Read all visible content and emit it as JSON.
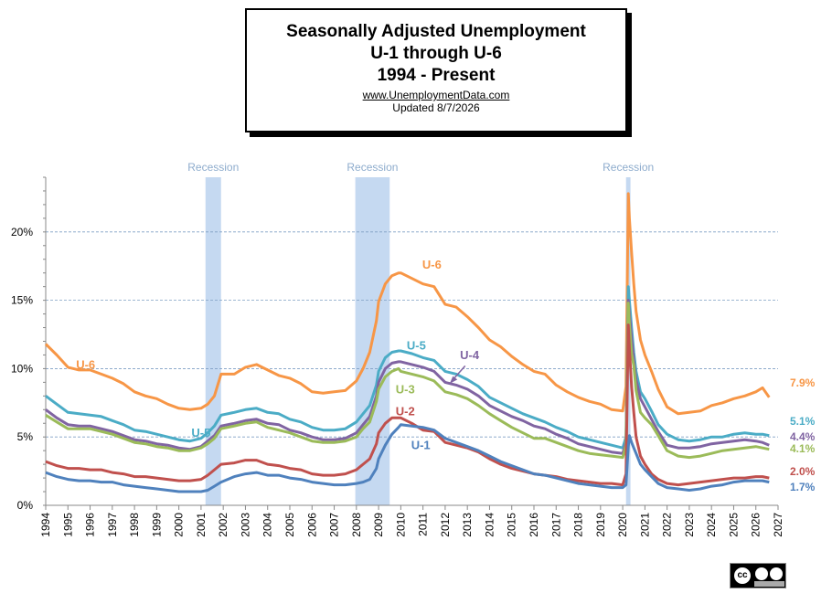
{
  "header": {
    "line1": "Seasonally Adjusted Unemployment",
    "line2": "U-1 through U-6",
    "line3": "1994 - Present",
    "url": "www.UnemploymentData.com",
    "updated": "Updated 8/7/2026"
  },
  "license_icon": "creative-commons-by-sa-icon",
  "chart_data": {
    "type": "line",
    "title": "",
    "xlabel": "",
    "ylabel": "",
    "xlim": [
      1994,
      2027
    ],
    "ylim": [
      0,
      24
    ],
    "x_ticks": [
      "1994",
      "1995",
      "1996",
      "1997",
      "1998",
      "1999",
      "2000",
      "2001",
      "2002",
      "2003",
      "2004",
      "2005",
      "2006",
      "2007",
      "2008",
      "2009",
      "2010",
      "2011",
      "2012",
      "2013",
      "2014",
      "2015",
      "2016",
      "2017",
      "2018",
      "2019",
      "2020",
      "2021",
      "2022",
      "2023",
      "2024",
      "2025",
      "2026",
      "2027"
    ],
    "y_ticks": [
      {
        "value": 0,
        "label": "0%"
      },
      {
        "value": 5,
        "label": "5%"
      },
      {
        "value": 10,
        "label": "10%"
      },
      {
        "value": 15,
        "label": "15%"
      },
      {
        "value": 20,
        "label": "20%"
      }
    ],
    "gridlines": "horizontal dashed",
    "recessions": [
      {
        "start": 2001.2,
        "end": 2001.9,
        "label": "Recession"
      },
      {
        "start": 2007.95,
        "end": 2009.5,
        "label": "Recession"
      },
      {
        "start": 2020.15,
        "end": 2020.35,
        "label": "Recession"
      }
    ],
    "series": [
      {
        "name": "U-6",
        "color": "#f79646",
        "latest_label": "7.9%",
        "x": [
          1994,
          1994.5,
          1995,
          1995.5,
          1996,
          1996.5,
          1997,
          1997.5,
          1998,
          1998.5,
          1999,
          1999.5,
          2000,
          2000.5,
          2001,
          2001.3,
          2001.6,
          2001.9,
          2002.5,
          2003,
          2003.5,
          2004,
          2004.5,
          2005,
          2005.5,
          2006,
          2006.5,
          2007,
          2007.5,
          2008,
          2008.3,
          2008.6,
          2008.9,
          2009,
          2009.3,
          2009.6,
          2009.9,
          2010,
          2010.5,
          2011,
          2011.5,
          2012,
          2012.5,
          2013,
          2013.5,
          2014,
          2014.5,
          2015,
          2015.5,
          2016,
          2016.5,
          2017,
          2017.5,
          2018,
          2018.5,
          2019,
          2019.5,
          2020,
          2020.15,
          2020.25,
          2020.3,
          2020.4,
          2020.5,
          2020.6,
          2020.8,
          2021,
          2021.3,
          2021.6,
          2022,
          2022.5,
          2023,
          2023.5,
          2024,
          2024.5,
          2025,
          2025.5,
          2026,
          2026.3,
          2026.6
        ],
        "y": [
          11.8,
          11,
          10.1,
          9.9,
          9.9,
          9.6,
          9.3,
          8.9,
          8.3,
          8.0,
          7.8,
          7.4,
          7.1,
          7.0,
          7.1,
          7.4,
          8.0,
          9.6,
          9.6,
          10.1,
          10.3,
          9.9,
          9.5,
          9.3,
          8.9,
          8.3,
          8.2,
          8.3,
          8.4,
          9.1,
          10.0,
          11.2,
          13.5,
          14.9,
          16.2,
          16.8,
          17.0,
          17.0,
          16.6,
          16.2,
          16.0,
          14.7,
          14.5,
          13.8,
          13.0,
          12.1,
          11.6,
          10.9,
          10.3,
          9.8,
          9.6,
          8.8,
          8.3,
          7.9,
          7.6,
          7.4,
          7.0,
          6.9,
          8.7,
          22.8,
          21.0,
          18.5,
          16.2,
          14.2,
          12.1,
          11.0,
          9.8,
          8.5,
          7.2,
          6.7,
          6.8,
          6.9,
          7.3,
          7.5,
          7.8,
          8.0,
          8.3,
          8.6,
          7.9
        ]
      },
      {
        "name": "U-5",
        "color": "#4bacc6",
        "latest_label": "5.1%",
        "x": [
          1994,
          1994.5,
          1995,
          1995.5,
          1996,
          1996.5,
          1997,
          1997.5,
          1998,
          1998.5,
          1999,
          1999.5,
          2000,
          2000.5,
          2001,
          2001.3,
          2001.6,
          2001.9,
          2002.5,
          2003,
          2003.5,
          2004,
          2004.5,
          2005,
          2005.5,
          2006,
          2006.5,
          2007,
          2007.5,
          2008,
          2008.3,
          2008.6,
          2008.9,
          2009,
          2009.3,
          2009.6,
          2009.9,
          2010,
          2010.5,
          2011,
          2011.5,
          2012,
          2012.5,
          2013,
          2013.5,
          2014,
          2014.5,
          2015,
          2015.5,
          2016,
          2016.5,
          2017,
          2017.5,
          2018,
          2018.5,
          2019,
          2019.5,
          2020,
          2020.15,
          2020.25,
          2020.3,
          2020.4,
          2020.5,
          2020.6,
          2020.8,
          2021,
          2021.3,
          2021.6,
          2022,
          2022.5,
          2023,
          2023.5,
          2024,
          2024.5,
          2025,
          2025.5,
          2026,
          2026.3,
          2026.6
        ],
        "y": [
          8.0,
          7.4,
          6.8,
          6.7,
          6.6,
          6.5,
          6.2,
          5.9,
          5.5,
          5.4,
          5.2,
          5.0,
          4.8,
          4.7,
          4.9,
          5.3,
          5.8,
          6.6,
          6.8,
          7.0,
          7.1,
          6.8,
          6.7,
          6.3,
          6.1,
          5.7,
          5.5,
          5.5,
          5.6,
          6.1,
          6.7,
          7.3,
          8.8,
          9.8,
          10.8,
          11.2,
          11.3,
          11.3,
          11.1,
          10.8,
          10.6,
          9.8,
          9.6,
          9.2,
          8.7,
          7.9,
          7.5,
          7.1,
          6.7,
          6.4,
          6.1,
          5.7,
          5.4,
          5.0,
          4.8,
          4.6,
          4.4,
          4.2,
          5.0,
          16.0,
          15.0,
          13.0,
          11.2,
          9.8,
          8.3,
          7.8,
          6.9,
          5.9,
          5.2,
          4.8,
          4.7,
          4.8,
          5.0,
          5.0,
          5.2,
          5.3,
          5.2,
          5.2,
          5.1
        ]
      },
      {
        "name": "U-4",
        "color": "#8064a2",
        "latest_label": "4.4%",
        "x": [
          1994,
          1994.5,
          1995,
          1995.5,
          1996,
          1996.5,
          1997,
          1997.5,
          1998,
          1998.5,
          1999,
          1999.5,
          2000,
          2000.5,
          2001,
          2001.3,
          2001.6,
          2001.9,
          2002.5,
          2003,
          2003.5,
          2004,
          2004.5,
          2005,
          2005.5,
          2006,
          2006.5,
          2007,
          2007.5,
          2008,
          2008.3,
          2008.6,
          2008.9,
          2009,
          2009.3,
          2009.6,
          2009.9,
          2010,
          2010.5,
          2011,
          2011.5,
          2012,
          2012.5,
          2013,
          2013.5,
          2014,
          2014.5,
          2015,
          2015.5,
          2016,
          2016.5,
          2017,
          2017.5,
          2018,
          2018.5,
          2019,
          2019.5,
          2020,
          2020.15,
          2020.25,
          2020.3,
          2020.4,
          2020.5,
          2020.6,
          2020.8,
          2021,
          2021.3,
          2021.6,
          2022,
          2022.5,
          2023,
          2023.5,
          2024,
          2024.5,
          2025,
          2025.5,
          2026,
          2026.3,
          2026.6
        ],
        "y": [
          7.0,
          6.4,
          5.9,
          5.8,
          5.8,
          5.6,
          5.4,
          5.1,
          4.8,
          4.7,
          4.5,
          4.4,
          4.2,
          4.1,
          4.3,
          4.7,
          5.1,
          5.8,
          6.0,
          6.2,
          6.3,
          6.0,
          5.9,
          5.5,
          5.3,
          5.0,
          4.8,
          4.8,
          4.9,
          5.3,
          5.9,
          6.5,
          8.0,
          9.0,
          10.0,
          10.4,
          10.5,
          10.5,
          10.3,
          10.1,
          9.8,
          9.0,
          8.8,
          8.5,
          8.0,
          7.3,
          6.9,
          6.5,
          6.2,
          5.8,
          5.6,
          5.2,
          4.9,
          4.5,
          4.3,
          4.1,
          3.9,
          3.8,
          4.6,
          15.0,
          14.0,
          12.2,
          10.6,
          9.2,
          7.8,
          7.2,
          6.3,
          5.4,
          4.4,
          4.2,
          4.2,
          4.3,
          4.5,
          4.6,
          4.7,
          4.8,
          4.7,
          4.6,
          4.4
        ]
      },
      {
        "name": "U-3",
        "color": "#9bbb59",
        "latest_label": "4.1%",
        "x": [
          1994,
          1994.5,
          1995,
          1995.5,
          1996,
          1996.5,
          1997,
          1997.5,
          1998,
          1998.5,
          1999,
          1999.5,
          2000,
          2000.5,
          2001,
          2001.3,
          2001.6,
          2001.9,
          2002.5,
          2003,
          2003.5,
          2004,
          2004.5,
          2005,
          2005.5,
          2006,
          2006.5,
          2007,
          2007.5,
          2008,
          2008.3,
          2008.6,
          2008.9,
          2009,
          2009.3,
          2009.6,
          2009.9,
          2010,
          2010.5,
          2011,
          2011.5,
          2012,
          2012.5,
          2013,
          2013.5,
          2014,
          2014.5,
          2015,
          2015.5,
          2016,
          2016.5,
          2017,
          2017.5,
          2018,
          2018.5,
          2019,
          2019.5,
          2020,
          2020.15,
          2020.25,
          2020.3,
          2020.4,
          2020.5,
          2020.6,
          2020.8,
          2021,
          2021.3,
          2021.6,
          2022,
          2022.5,
          2023,
          2023.5,
          2024,
          2024.5,
          2025,
          2025.5,
          2026,
          2026.3,
          2026.6
        ],
        "y": [
          6.6,
          6.1,
          5.6,
          5.6,
          5.6,
          5.4,
          5.2,
          4.9,
          4.6,
          4.5,
          4.3,
          4.2,
          4.0,
          4.0,
          4.2,
          4.5,
          4.9,
          5.6,
          5.8,
          6.0,
          6.1,
          5.7,
          5.5,
          5.3,
          5.0,
          4.7,
          4.6,
          4.6,
          4.7,
          5.0,
          5.6,
          6.1,
          7.6,
          8.5,
          9.4,
          9.8,
          10.0,
          9.8,
          9.6,
          9.4,
          9.1,
          8.3,
          8.1,
          7.8,
          7.3,
          6.7,
          6.2,
          5.7,
          5.3,
          4.9,
          4.9,
          4.6,
          4.3,
          4.0,
          3.8,
          3.7,
          3.6,
          3.5,
          4.4,
          14.8,
          13.3,
          11.1,
          10.2,
          8.4,
          6.8,
          6.4,
          5.9,
          5.1,
          4.0,
          3.6,
          3.5,
          3.6,
          3.8,
          4.0,
          4.1,
          4.2,
          4.3,
          4.2,
          4.1
        ]
      },
      {
        "name": "U-2",
        "color": "#c0504d",
        "latest_label": "2.0%",
        "x": [
          1994,
          1994.5,
          1995,
          1995.5,
          1996,
          1996.5,
          1997,
          1997.5,
          1998,
          1998.5,
          1999,
          1999.5,
          2000,
          2000.5,
          2001,
          2001.3,
          2001.6,
          2001.9,
          2002.5,
          2003,
          2003.5,
          2004,
          2004.5,
          2005,
          2005.5,
          2006,
          2006.5,
          2007,
          2007.5,
          2008,
          2008.3,
          2008.6,
          2008.9,
          2009,
          2009.3,
          2009.6,
          2009.9,
          2010,
          2010.5,
          2011,
          2011.5,
          2012,
          2012.5,
          2013,
          2013.5,
          2014,
          2014.5,
          2015,
          2015.5,
          2016,
          2016.5,
          2017,
          2017.5,
          2018,
          2018.5,
          2019,
          2019.5,
          2020,
          2020.15,
          2020.25,
          2020.3,
          2020.4,
          2020.5,
          2020.6,
          2020.8,
          2021,
          2021.3,
          2021.6,
          2022,
          2022.5,
          2023,
          2023.5,
          2024,
          2024.5,
          2025,
          2025.5,
          2026,
          2026.3,
          2026.6
        ],
        "y": [
          3.2,
          2.9,
          2.7,
          2.7,
          2.6,
          2.6,
          2.4,
          2.3,
          2.1,
          2.1,
          2.0,
          1.9,
          1.8,
          1.8,
          1.9,
          2.2,
          2.6,
          3.0,
          3.1,
          3.3,
          3.3,
          3.0,
          2.9,
          2.7,
          2.6,
          2.3,
          2.2,
          2.2,
          2.3,
          2.6,
          3.0,
          3.4,
          4.5,
          5.3,
          6.0,
          6.4,
          6.4,
          6.4,
          6.0,
          5.5,
          5.4,
          4.6,
          4.4,
          4.2,
          3.9,
          3.4,
          3.0,
          2.7,
          2.5,
          2.3,
          2.2,
          2.1,
          1.9,
          1.8,
          1.7,
          1.6,
          1.6,
          1.5,
          2.3,
          13.2,
          11.5,
          8.7,
          6.8,
          5.0,
          3.6,
          3.0,
          2.3,
          1.9,
          1.6,
          1.5,
          1.6,
          1.7,
          1.8,
          1.9,
          2.0,
          2.0,
          2.1,
          2.1,
          2.0
        ]
      },
      {
        "name": "U-1",
        "color": "#4f81bd",
        "latest_label": "1.7%",
        "x": [
          1994,
          1994.5,
          1995,
          1995.5,
          1996,
          1996.5,
          1997,
          1997.5,
          1998,
          1998.5,
          1999,
          1999.5,
          2000,
          2000.5,
          2001,
          2001.3,
          2001.6,
          2001.9,
          2002.5,
          2003,
          2003.5,
          2004,
          2004.5,
          2005,
          2005.5,
          2006,
          2006.5,
          2007,
          2007.5,
          2008,
          2008.3,
          2008.6,
          2008.9,
          2009,
          2009.3,
          2009.6,
          2009.9,
          2010,
          2010.5,
          2011,
          2011.5,
          2012,
          2012.5,
          2013,
          2013.5,
          2014,
          2014.5,
          2015,
          2015.5,
          2016,
          2016.5,
          2017,
          2017.5,
          2018,
          2018.5,
          2019,
          2019.5,
          2020,
          2020.15,
          2020.25,
          2020.3,
          2020.4,
          2020.5,
          2020.6,
          2020.8,
          2021,
          2021.3,
          2021.6,
          2022,
          2022.5,
          2023,
          2023.5,
          2024,
          2024.5,
          2025,
          2025.5,
          2026,
          2026.3,
          2026.6
        ],
        "y": [
          2.4,
          2.1,
          1.9,
          1.8,
          1.8,
          1.7,
          1.7,
          1.5,
          1.4,
          1.3,
          1.2,
          1.1,
          1.0,
          1.0,
          1.0,
          1.1,
          1.4,
          1.7,
          2.1,
          2.3,
          2.4,
          2.2,
          2.2,
          2.0,
          1.9,
          1.7,
          1.6,
          1.5,
          1.5,
          1.6,
          1.7,
          1.9,
          2.7,
          3.4,
          4.4,
          5.2,
          5.7,
          5.9,
          5.8,
          5.7,
          5.5,
          4.9,
          4.6,
          4.3,
          4.0,
          3.6,
          3.2,
          2.9,
          2.6,
          2.3,
          2.2,
          2.0,
          1.8,
          1.6,
          1.5,
          1.4,
          1.3,
          1.3,
          1.5,
          4.3,
          5.1,
          4.6,
          4.2,
          3.8,
          3.0,
          2.6,
          2.1,
          1.6,
          1.3,
          1.2,
          1.1,
          1.2,
          1.4,
          1.5,
          1.7,
          1.8,
          1.8,
          1.8,
          1.7
        ]
      }
    ],
    "series_labels": [
      {
        "series": "U-6",
        "text": "U-6",
        "x": 1995.8,
        "y": 10.0
      },
      {
        "series": "U-6",
        "text": "U-6",
        "x": 2011.4,
        "y": 17.3
      },
      {
        "series": "U-5",
        "text": "U-5",
        "x": 2001.0,
        "y": 5.0
      },
      {
        "series": "U-5",
        "text": "U-5",
        "x": 2010.7,
        "y": 11.4
      },
      {
        "series": "U-4",
        "text": "U-4",
        "x": 2013.1,
        "y": 10.7
      },
      {
        "series": "U-3",
        "text": "U-3",
        "x": 2010.2,
        "y": 8.2
      },
      {
        "series": "U-2",
        "text": "U-2",
        "x": 2010.2,
        "y": 6.6
      },
      {
        "series": "U-1",
        "text": "U-1",
        "x": 2010.9,
        "y": 4.1
      }
    ]
  }
}
